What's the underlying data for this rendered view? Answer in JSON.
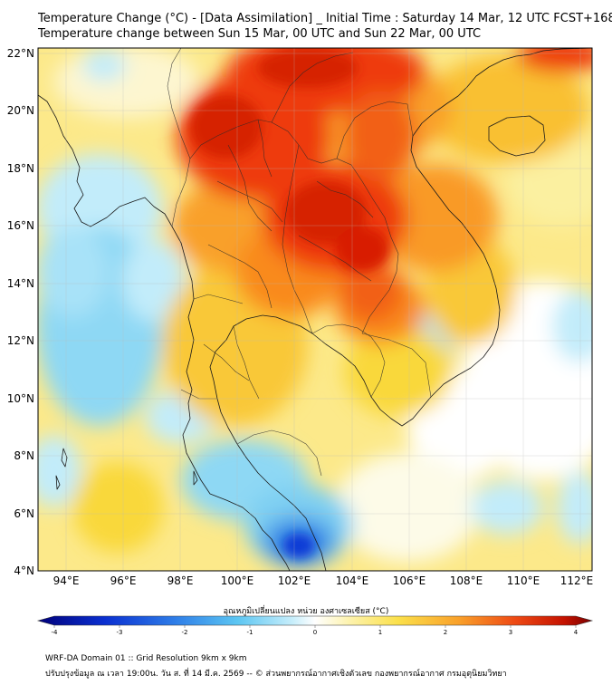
{
  "header": {
    "title_line1": "Temperature Change (°C) - [Data Assimilation] _ Initial Time : Saturday 14 Mar, 12 UTC FCST+168",
    "title_line2": "Temperature change between Sun 15 Mar, 00 UTC and Sun 22 Mar, 00 UTC"
  },
  "map": {
    "lat_labels": [
      "22°N",
      "20°N",
      "18°N",
      "16°N",
      "14°N",
      "12°N",
      "10°N",
      "8°N",
      "6°N",
      "4°N"
    ],
    "lon_labels": [
      "94°E",
      "96°E",
      "98°E",
      "100°E",
      "102°E",
      "104°E",
      "106°E",
      "108°E",
      "110°E",
      "112°E"
    ],
    "lat_range": [
      4,
      22.2
    ],
    "lon_range": [
      93,
      112.4
    ]
  },
  "colorbar": {
    "title": "อุณหภูมิเปลี่ยนแปลง หน่วย องศาเซลเซียส (°C)",
    "ticks": [
      "-4",
      "-3",
      "-2",
      "-1",
      "0",
      "1",
      "2",
      "3",
      "4"
    ],
    "range": [
      -4,
      4
    ]
  },
  "footer": {
    "line1": "WRF-DA Domain 01 :: Grid Resolution 9km x 9km",
    "line2": "ปรับปรุงข้อมูล ณ เวลา 19:00น. วัน ส. ที่ 14 มี.ค. 2569 -- © ส่วนพยากรณ์อากาศเชิงตัวเลข กองพยากรณ์อากาศ กรมอุตุนิยมวิทยา"
  },
  "colors": {
    "deep_red": "#cc1500",
    "red": "#ee3a10",
    "orange": "#f98a1c",
    "yellow": "#f9d83a",
    "light_yellow": "#fbf09a",
    "white": "#ffffff",
    "light_cyan": "#c2ecfa",
    "cyan": "#8ed8f4",
    "blue": "#3d8fe6",
    "dark_blue": "#0d3ad6"
  }
}
